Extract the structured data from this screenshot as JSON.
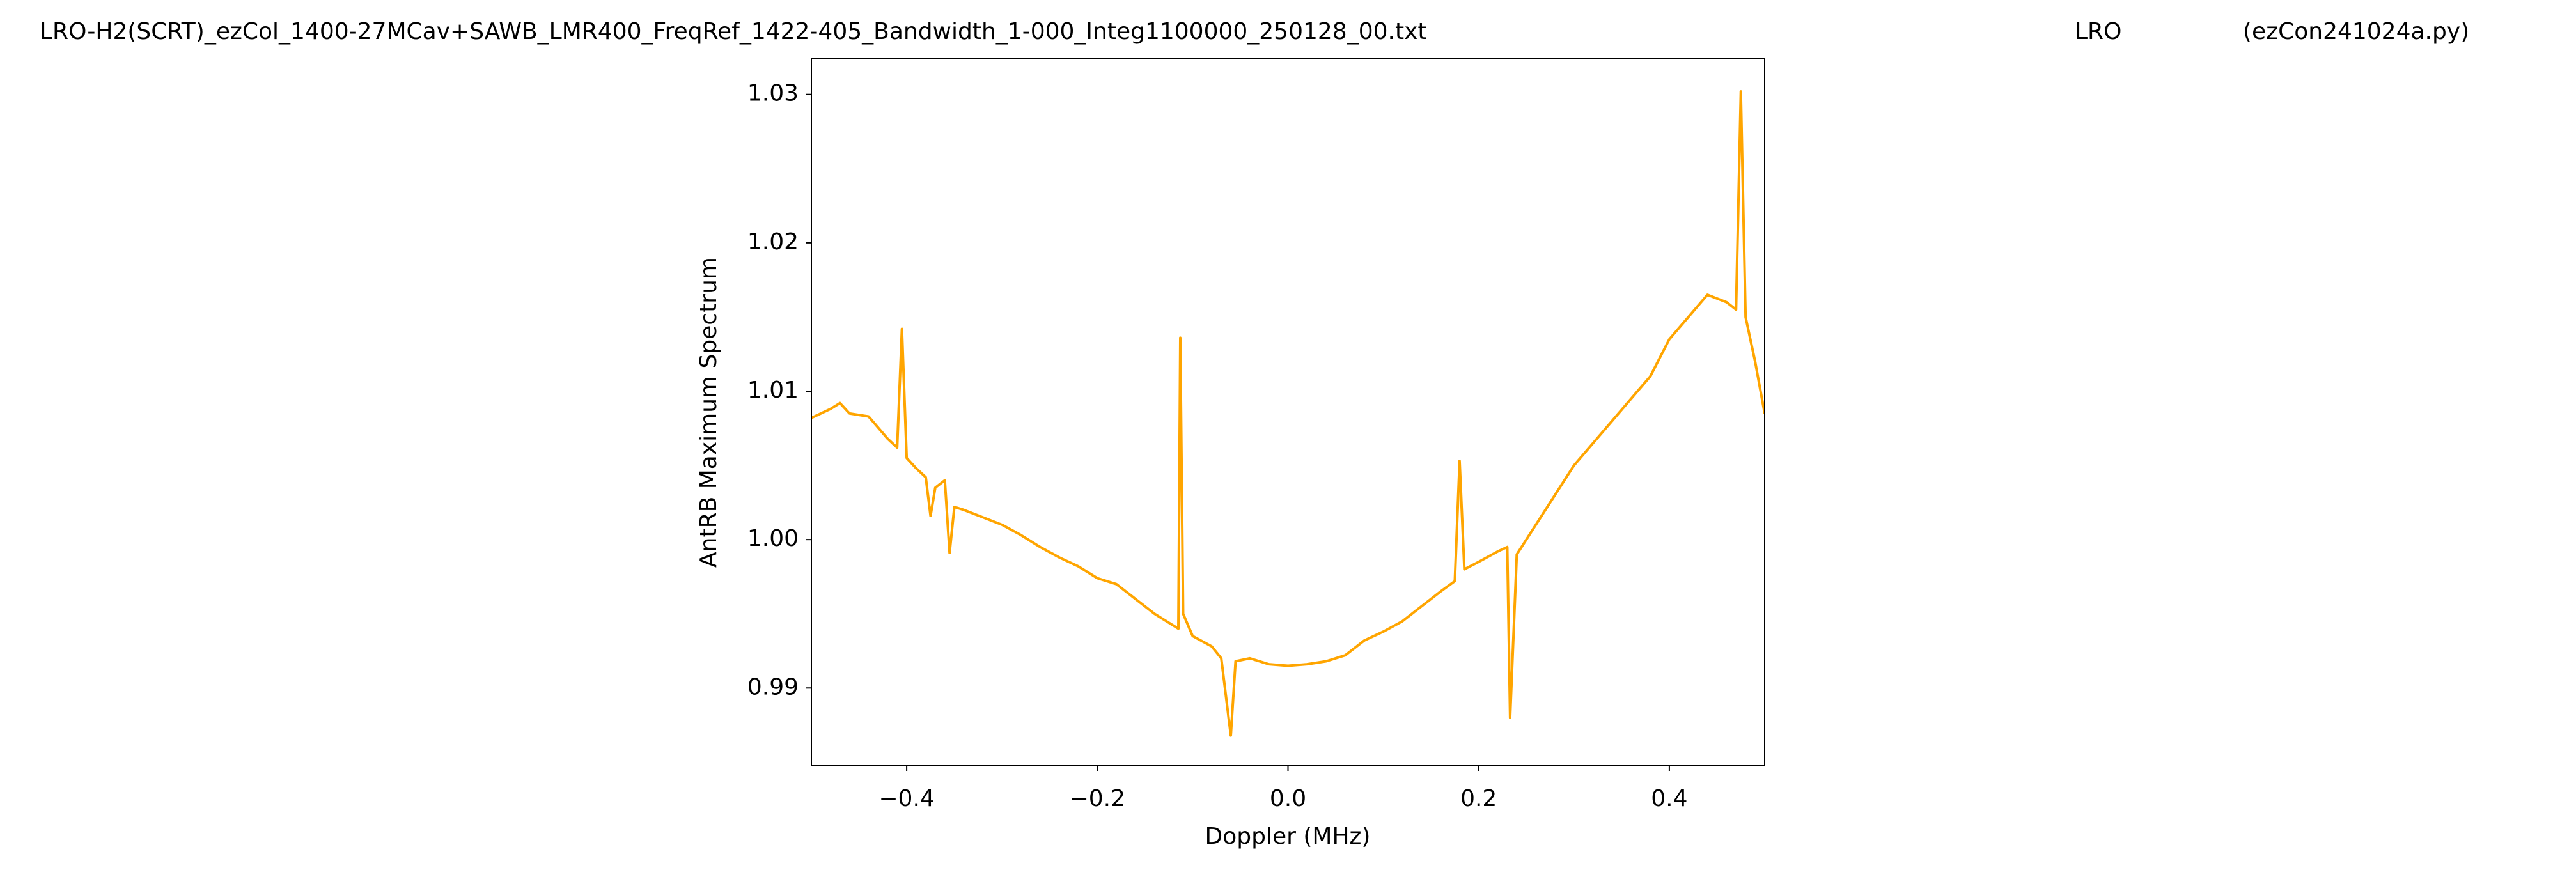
{
  "chart_data": {
    "type": "line",
    "title": "LRO-H2(SCRT)_ezCol_1400-27MCav+SAWB_LMR400_FreqRef_1422-405_Bandwidth_1-000_Integ1100000_250128_00.txt",
    "annotations": [
      "LRO",
      "(ezCon241024a.py)"
    ],
    "x_label": "Doppler (MHz)",
    "y_label": "AntRB Maximum Spectrum",
    "x": [
      -0.5,
      -0.48,
      -0.47,
      -0.46,
      -0.44,
      -0.42,
      -0.41,
      -0.405,
      -0.4,
      -0.39,
      -0.38,
      -0.375,
      -0.37,
      -0.36,
      -0.355,
      -0.35,
      -0.34,
      -0.32,
      -0.3,
      -0.28,
      -0.26,
      -0.24,
      -0.22,
      -0.2,
      -0.18,
      -0.16,
      -0.14,
      -0.12,
      -0.115,
      -0.113,
      -0.11,
      -0.1,
      -0.08,
      -0.07,
      -0.06,
      -0.055,
      -0.04,
      -0.02,
      0.0,
      0.02,
      0.04,
      0.06,
      0.08,
      0.1,
      0.12,
      0.14,
      0.16,
      0.175,
      0.18,
      0.185,
      0.2,
      0.22,
      0.23,
      0.233,
      0.24,
      0.26,
      0.28,
      0.3,
      0.32,
      0.34,
      0.36,
      0.38,
      0.4,
      0.42,
      0.44,
      0.46,
      0.47,
      0.475,
      0.48,
      0.49,
      0.5
    ],
    "series": [
      {
        "name": "AntRB Maximum Spectrum",
        "color": "#ffa500",
        "values": [
          1.0082,
          1.0088,
          1.0092,
          1.0085,
          1.0083,
          1.0068,
          1.0062,
          1.0142,
          1.0055,
          1.0048,
          1.0042,
          1.0016,
          1.0035,
          1.004,
          0.9991,
          1.0022,
          1.002,
          1.0015,
          1.001,
          1.0003,
          0.9995,
          0.9988,
          0.9982,
          0.9974,
          0.997,
          0.996,
          0.995,
          0.9942,
          0.994,
          1.0136,
          0.995,
          0.9935,
          0.9928,
          0.992,
          0.9868,
          0.9918,
          0.992,
          0.9916,
          0.9915,
          0.9916,
          0.9918,
          0.9922,
          0.9932,
          0.9938,
          0.9945,
          0.9955,
          0.9965,
          0.9972,
          1.0053,
          0.998,
          0.9985,
          0.9992,
          0.9995,
          0.988,
          0.999,
          1.001,
          1.003,
          1.005,
          1.0065,
          1.008,
          1.0095,
          1.011,
          1.0135,
          1.015,
          1.0165,
          1.016,
          1.0155,
          1.0302,
          1.015,
          1.012,
          1.0085
        ]
      }
    ],
    "xlim": [
      -0.5,
      0.5
    ],
    "xticks": [
      {
        "value": -0.4,
        "label": "−0.4"
      },
      {
        "value": -0.2,
        "label": "−0.2"
      },
      {
        "value": 0.0,
        "label": "0.0"
      },
      0.2,
      0.4
    ],
    "ylim": [
      0.9848,
      1.0324
    ],
    "yticks": [
      0.99,
      {
        "value": 1.0,
        "label": "1.00"
      },
      1.01,
      1.02,
      1.03
    ],
    "grid": false
  }
}
